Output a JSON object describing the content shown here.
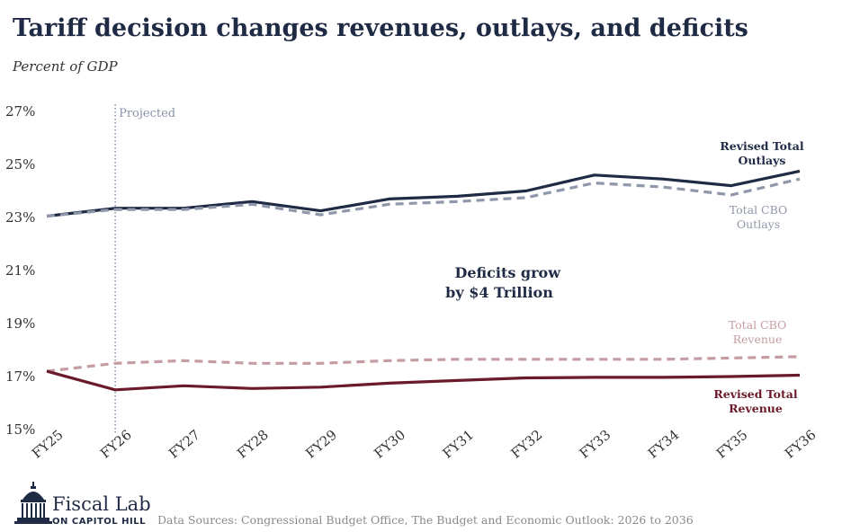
{
  "header": {
    "title": "Tariff decision changes revenues, outlays, and deficits",
    "subtitle": "Percent of GDP"
  },
  "colors": {
    "revised_outlays": "#1f2a44",
    "cbo_outlays": "#8f97aa",
    "revised_revenue": "#6b1a2a",
    "cbo_revenue": "#c49ca2"
  },
  "chart_data": {
    "type": "line",
    "categories": [
      "FY25",
      "FY26",
      "FY27",
      "FY28",
      "FY29",
      "FY30",
      "FY31",
      "FY32",
      "FY33",
      "FY34",
      "FY35",
      "FY36"
    ],
    "ylim": [
      15,
      27
    ],
    "yticks": [
      15,
      17,
      19,
      21,
      23,
      25,
      27
    ],
    "ytick_labels": [
      "15%",
      "17%",
      "19%",
      "21%",
      "23%",
      "25%",
      "27%"
    ],
    "projected_start": "FY26",
    "projected_label": "Projected",
    "series": [
      {
        "key": "revised_outlays",
        "name": "Revised Total Outlays",
        "label_lines": [
          "Revised Total",
          "Outlays"
        ],
        "style": "solid",
        "values": [
          23.05,
          23.35,
          23.35,
          23.6,
          23.25,
          23.7,
          23.8,
          24.0,
          24.6,
          24.45,
          24.2,
          24.75
        ]
      },
      {
        "key": "cbo_outlays",
        "name": "Total CBO Outlays",
        "label_lines": [
          "Total CBO",
          "Outlays"
        ],
        "style": "dashed",
        "values": [
          23.05,
          23.3,
          23.3,
          23.5,
          23.1,
          23.5,
          23.6,
          23.75,
          24.3,
          24.15,
          23.85,
          24.45
        ]
      },
      {
        "key": "cbo_revenue",
        "name": "Total CBO Revenue",
        "label_lines": [
          "Total CBO",
          "Revenue"
        ],
        "style": "dashed",
        "values": [
          17.2,
          17.5,
          17.6,
          17.5,
          17.5,
          17.6,
          17.65,
          17.65,
          17.65,
          17.65,
          17.7,
          17.75
        ]
      },
      {
        "key": "revised_revenue",
        "name": "Revised Total Revenue",
        "label_lines": [
          "Revised Total",
          "Revenue"
        ],
        "style": "solid",
        "values": [
          17.2,
          16.5,
          16.65,
          16.55,
          16.6,
          16.75,
          16.85,
          16.95,
          16.97,
          16.97,
          17.0,
          17.05
        ]
      }
    ],
    "annotation": {
      "lines": [
        "Deficits grow",
        "by $4 Trillion"
      ]
    }
  },
  "footer": {
    "logo_main": "Fiscal Lab",
    "logo_sub": "ON CAPITOL HILL",
    "source": "Data Sources: Congressional Budget Office, The Budget and Economic Outlook: 2026 to 2036"
  }
}
